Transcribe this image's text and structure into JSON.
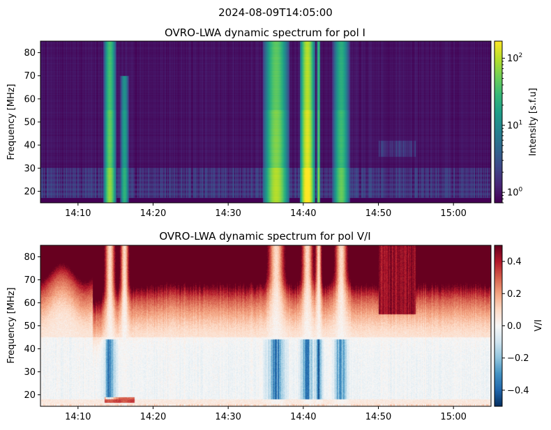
{
  "figure": {
    "suptitle": "2024-08-09T14:05:00"
  },
  "chart_data": [
    {
      "type": "heatmap",
      "title": "OVRO-LWA dynamic spectrum for pol I",
      "xlabel": "",
      "ylabel": "Frequency [MHz]",
      "x_ticks": [
        "14:10",
        "14:20",
        "14:30",
        "14:40",
        "14:50",
        "15:00"
      ],
      "x_tick_minutes": [
        10,
        20,
        30,
        40,
        50,
        60
      ],
      "xlim_minutes_after_14": [
        5,
        65
      ],
      "y_ticks": [
        20,
        30,
        40,
        50,
        60,
        70,
        80
      ],
      "ylim": [
        15,
        85
      ],
      "colormap": "viridis",
      "colorbar": {
        "label": "Intensity [s.f.u]",
        "scale": "log",
        "range": [
          0.7,
          180
        ],
        "ticks": [
          {
            "base": "10",
            "exp": "0",
            "value": 1
          },
          {
            "base": "10",
            "exp": "1",
            "value": 10
          },
          {
            "base": "10",
            "exp": "2",
            "value": 100
          }
        ]
      },
      "bursts": [
        {
          "start_min": 13.7,
          "end_min": 14.8,
          "max_freq": 85,
          "peak": 60
        },
        {
          "start_min": 15.8,
          "end_min": 16.6,
          "max_freq": 70,
          "peak": 20
        },
        {
          "start_min": 35.3,
          "end_min": 37.5,
          "max_freq": 85,
          "peak": 80
        },
        {
          "start_min": 39.9,
          "end_min": 41.2,
          "max_freq": 85,
          "peak": 180
        },
        {
          "start_min": 41.9,
          "end_min": 42.2,
          "max_freq": 85,
          "peak": 60
        },
        {
          "start_min": 44.3,
          "end_min": 45.8,
          "max_freq": 85,
          "peak": 40
        }
      ]
    },
    {
      "type": "heatmap",
      "title": "OVRO-LWA dynamic spectrum for pol V/I",
      "xlabel": "",
      "ylabel": "Frequency [MHz]",
      "x_ticks": [
        "14:10",
        "14:20",
        "14:30",
        "14:40",
        "14:50",
        "15:00"
      ],
      "x_tick_minutes": [
        10,
        20,
        30,
        40,
        50,
        60
      ],
      "xlim_minutes_after_14": [
        5,
        65
      ],
      "y_ticks": [
        20,
        30,
        40,
        50,
        60,
        70,
        80
      ],
      "ylim": [
        15,
        85
      ],
      "colormap": "RdBu_r",
      "colorbar": {
        "label": "V/I",
        "scale": "linear",
        "range": [
          -0.5,
          0.5
        ],
        "ticks": [
          {
            "label": "0.4",
            "value": 0.4
          },
          {
            "label": "0.2",
            "value": 0.2
          },
          {
            "label": "0.0",
            "value": 0.0
          },
          {
            "label": "−0.2",
            "value": -0.2
          },
          {
            "label": "−0.4",
            "value": -0.4
          }
        ]
      }
    }
  ]
}
